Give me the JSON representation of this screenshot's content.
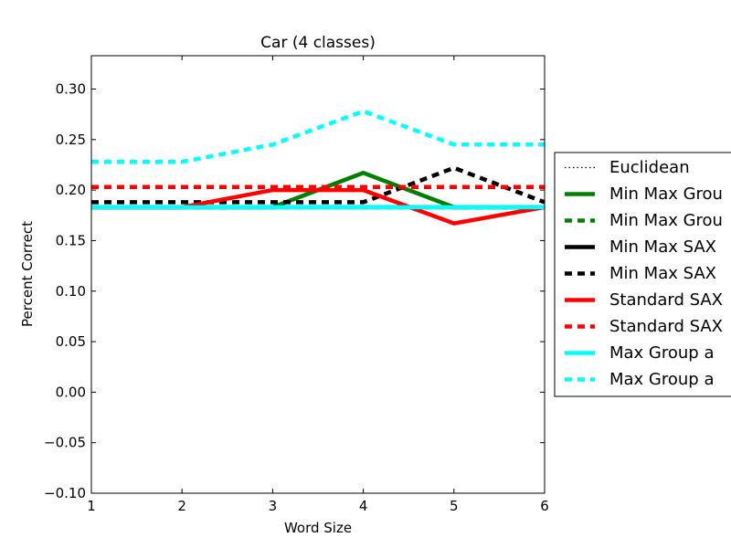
{
  "chart_data": {
    "type": "line",
    "title": "Car (4 classes)",
    "xlabel": "Word Size",
    "ylabel": "Percent Correct",
    "xlim": [
      1,
      6
    ],
    "ylim": [
      -0.1,
      0.333
    ],
    "xticks": [
      "1",
      "2",
      "3",
      "4",
      "5",
      "6"
    ],
    "yticks": [
      "0.30",
      "0.25",
      "0.20",
      "0.15",
      "0.10",
      "0.05",
      "0.00",
      "−0.05",
      "−0.10"
    ],
    "ytick_values": [
      0.3,
      0.25,
      0.2,
      0.15,
      0.1,
      0.05,
      0.0,
      -0.05,
      -0.1
    ],
    "grid": false,
    "legend_position": "outside-right",
    "x": [
      1,
      2,
      3,
      4,
      5,
      6
    ],
    "series": [
      {
        "name": "Euclidean",
        "color": "#000000",
        "style": "dotted",
        "values": [
          0.183,
          0.183,
          0.183,
          0.183,
          0.183,
          0.183
        ]
      },
      {
        "name": "Min Max Grou",
        "color": "#008000",
        "style": "solid",
        "values": [
          0.183,
          0.183,
          0.183,
          0.217,
          0.183,
          0.183
        ]
      },
      {
        "name": "Min Max Grou",
        "color": "#008000",
        "style": "dashed",
        "values": [
          0.183,
          0.183,
          0.183,
          0.183,
          0.183,
          0.183
        ]
      },
      {
        "name": "Min Max SAX",
        "color": "#000000",
        "style": "solid",
        "values": [
          0.183,
          0.183,
          0.183,
          0.183,
          0.183,
          0.183
        ]
      },
      {
        "name": "Min Max SAX",
        "color": "#000000",
        "style": "dashed",
        "values": [
          0.188,
          0.188,
          0.188,
          0.188,
          0.222,
          0.188
        ]
      },
      {
        "name": "Standard SAX",
        "color": "#ff0000",
        "style": "solid",
        "values": [
          0.183,
          0.183,
          0.2,
          0.2,
          0.167,
          0.183
        ]
      },
      {
        "name": "Standard SAX",
        "color": "#ff0000",
        "style": "dashed",
        "values": [
          0.203,
          0.203,
          0.203,
          0.203,
          0.203,
          0.203
        ]
      },
      {
        "name": "Max Group a",
        "color": "#00ffff",
        "style": "solid",
        "values": [
          0.183,
          0.183,
          0.183,
          0.183,
          0.183,
          0.183
        ]
      },
      {
        "name": "Max Group a",
        "color": "#00ffff",
        "style": "dashed",
        "values": [
          0.228,
          0.228,
          0.245,
          0.278,
          0.245,
          0.245
        ]
      }
    ]
  }
}
